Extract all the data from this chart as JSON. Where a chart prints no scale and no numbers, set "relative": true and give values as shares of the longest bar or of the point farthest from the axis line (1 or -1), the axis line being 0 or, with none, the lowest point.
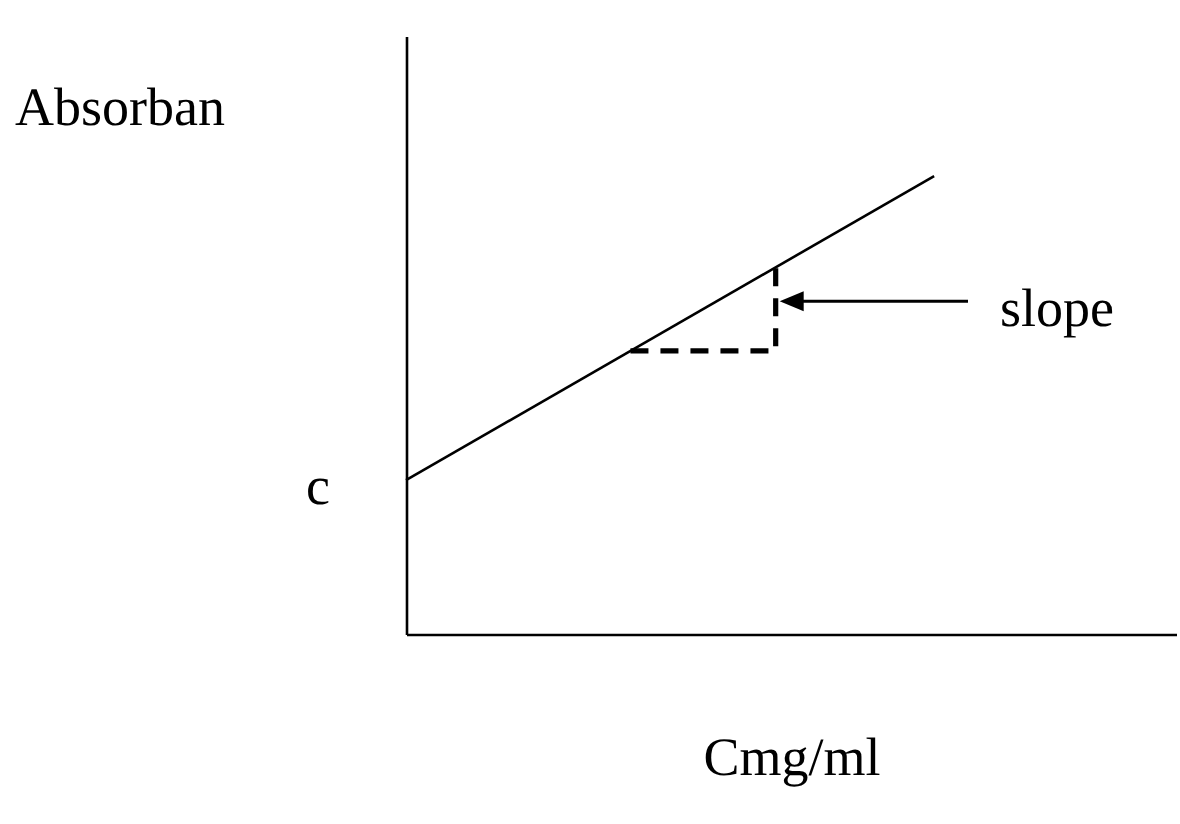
{
  "chart_data": {
    "type": "line",
    "relative": true,
    "xlabel": "Cmg/ml",
    "ylabel": "Absorban",
    "categories": [
      null,
      null
    ],
    "series": [
      {
        "color": "#000000",
        "values": [
          0.336,
          1
        ]
      }
    ],
    "annotations": [
      "c",
      "slope"
    ]
  }
}
